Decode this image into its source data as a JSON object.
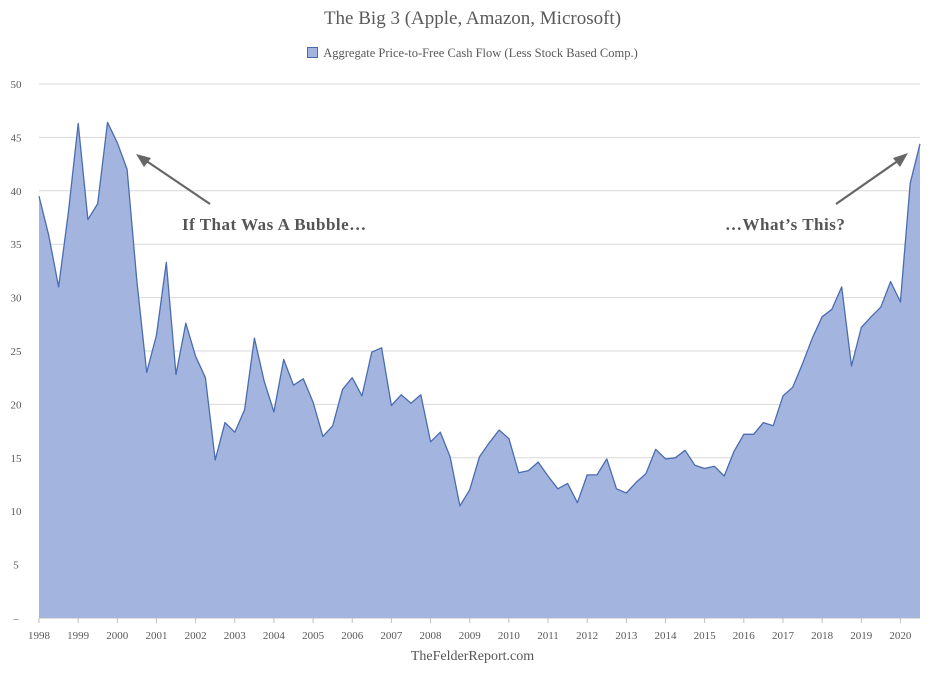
{
  "chart_data": {
    "type": "area",
    "title": "The Big 3 (Apple, Amazon, Microsoft)",
    "series": [
      {
        "name": "Aggregate Price-to-Free Cash Flow (Less Stock Based Comp.)",
        "values": [
          39.5,
          35.8,
          31.0,
          38.0,
          46.3,
          37.3,
          38.8,
          46.4,
          44.5,
          42.0,
          31.5,
          23.0,
          26.5,
          33.3,
          22.8,
          27.6,
          24.5,
          22.5,
          14.8,
          18.3,
          17.4,
          19.5,
          26.2,
          22.2,
          19.3,
          24.2,
          21.8,
          22.4,
          20.2,
          17.0,
          18.0,
          21.4,
          22.5,
          20.8,
          24.9,
          25.3,
          19.9,
          20.9,
          20.1,
          20.9,
          16.5,
          17.4,
          15.1,
          10.5,
          12.0,
          15.1,
          16.4,
          17.6,
          16.8,
          13.6,
          13.8,
          14.6,
          13.3,
          12.1,
          12.6,
          10.8,
          13.4,
          13.4,
          14.9,
          12.1,
          11.7,
          12.7,
          13.5,
          15.8,
          14.9,
          15.0,
          15.7,
          14.3,
          14.0,
          14.2,
          13.3,
          15.6,
          17.2,
          17.2,
          18.3,
          18.0,
          20.8,
          21.6,
          23.8,
          26.2,
          28.2,
          28.9,
          31.0,
          23.6,
          27.2,
          28.2,
          29.1,
          31.5,
          29.6,
          40.7,
          44.4
        ]
      }
    ],
    "x": {
      "start_year": 1998,
      "points_per_year": 4
    },
    "x_tick_labels": [
      "1998",
      "1999",
      "2000",
      "2001",
      "2002",
      "2003",
      "2004",
      "2005",
      "2006",
      "2007",
      "2008",
      "2009",
      "2010",
      "2011",
      "2012",
      "2013",
      "2014",
      "2015",
      "2016",
      "2017",
      "2018",
      "2019",
      "2020"
    ],
    "y_tick_labels": [
      "–",
      "5",
      "10",
      "15",
      "20",
      "25",
      "30",
      "35",
      "40",
      "45",
      "50"
    ],
    "ylim": [
      0,
      50
    ],
    "grid": true,
    "legend_position": "top-center",
    "annotations": [
      {
        "text": "If That Was A Bubble…"
      },
      {
        "text": "…What’s This?"
      }
    ],
    "credit": "TheFelderReport.com",
    "colors": {
      "fill": "#a3b5df",
      "line": "#4a6cb0",
      "grid": "#d9d9d9",
      "axis": "#bfbfbf",
      "arrow": "#666666"
    }
  }
}
